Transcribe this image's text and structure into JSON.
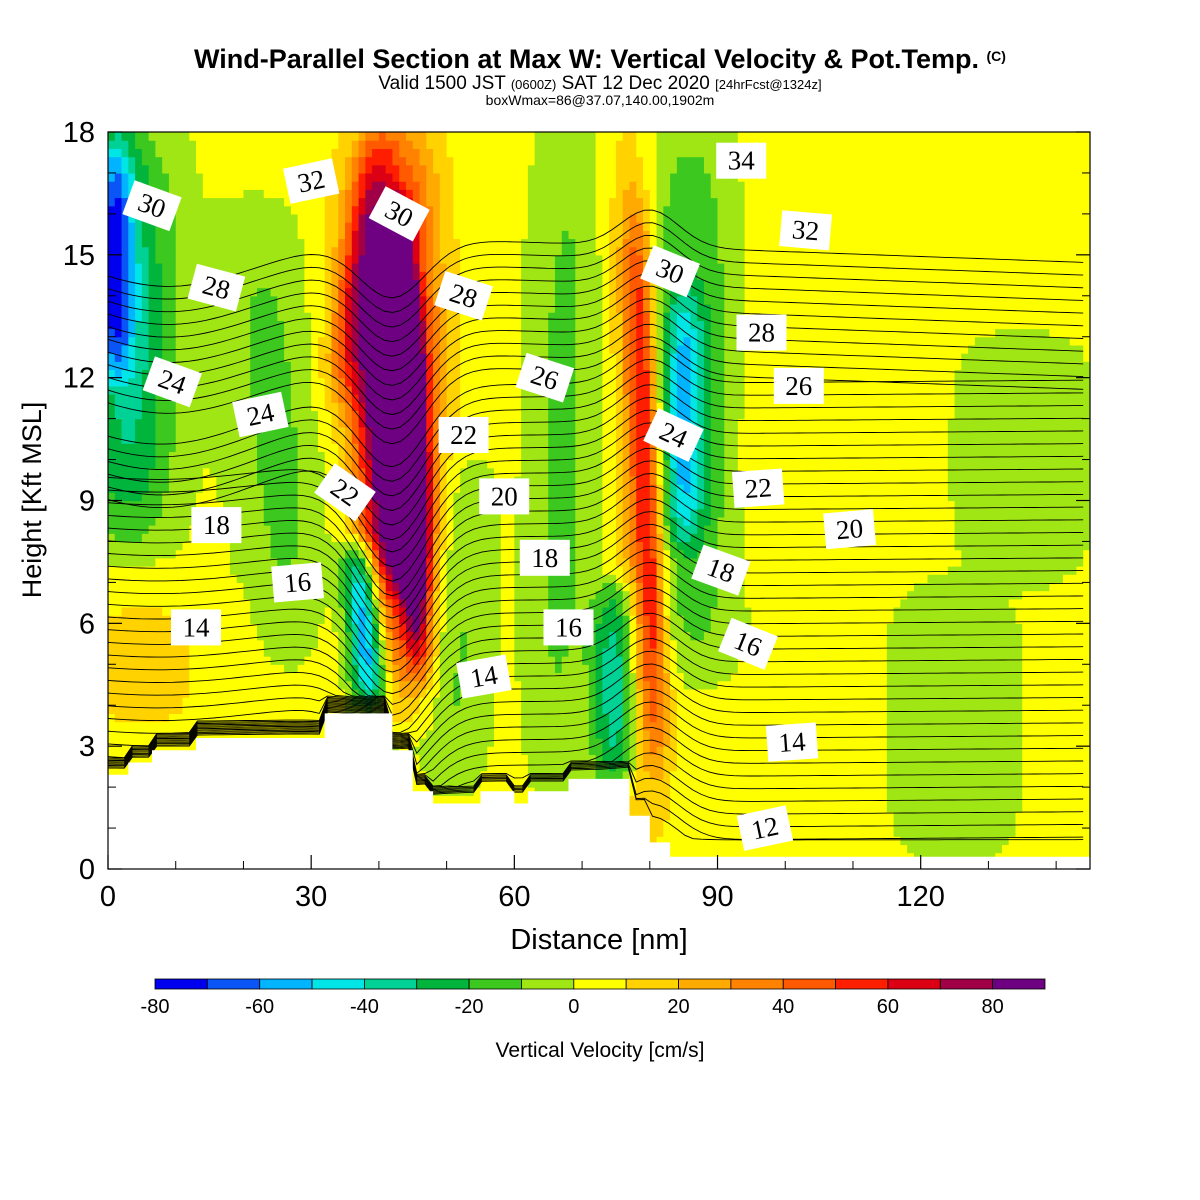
{
  "title": {
    "main": "Wind-Parallel Section at Max W: Vertical Velocity & Pot.Temp.",
    "mark": "(C)",
    "valid_prefix": "Valid 1500 JST",
    "valid_z": "(0600Z)",
    "valid_date": "SAT 12 Dec 2020",
    "valid_fcst": "[24hrFcst@1324z]",
    "box": "boxWmax=86@37.07,140.00,1902m"
  },
  "chart_data": {
    "type": "heatmap",
    "xlabel": "Distance [nm]",
    "ylabel": "Height [Kft MSL]",
    "xlim": [
      0,
      145
    ],
    "ylim": [
      0,
      18
    ],
    "x_ticks": [
      0,
      30,
      60,
      90,
      120
    ],
    "y_ticks": [
      0,
      3,
      6,
      9,
      12,
      15,
      18
    ],
    "colorbar": {
      "label": "Vertical Velocity [cm/s]",
      "levels": [
        -80,
        -70,
        -60,
        -50,
        -40,
        -30,
        -20,
        -10,
        0,
        10,
        20,
        30,
        40,
        50,
        60,
        70,
        80,
        90
      ],
      "tick_labels": [
        "-80",
        "-60",
        "-40",
        "-20",
        "0",
        "20",
        "40",
        "60",
        "80"
      ],
      "tick_values": [
        -80,
        -60,
        -40,
        -20,
        0,
        20,
        40,
        60,
        80
      ],
      "colors": [
        "#0000ee",
        "#0a55f5",
        "#00b4ff",
        "#00e6e6",
        "#00d296",
        "#00b43c",
        "#3cc81e",
        "#a0e614",
        "#ffff00",
        "#ffd200",
        "#ffaa00",
        "#ff8200",
        "#ff5a00",
        "#ff1e00",
        "#dc0014",
        "#a00046",
        "#6e0082"
      ]
    },
    "velocity_bands": [
      {
        "x_bottom": 40,
        "x_top": 42,
        "w": 10,
        "h_min": 4,
        "h_max": 18,
        "value": 80
      },
      {
        "x_bottom": 46,
        "x_top": 43,
        "w": 3,
        "h_min": 5,
        "h_max": 16,
        "value": 85
      },
      {
        "x_bottom": 44,
        "x_top": 42,
        "w": 6,
        "h_min": 7,
        "h_max": 14,
        "value": 60
      },
      {
        "x_bottom": 38,
        "x_top": 36,
        "w": 7,
        "h_min": 3,
        "h_max": 11,
        "value": -30
      },
      {
        "x_bottom": 39,
        "x_top": 37,
        "w": 4,
        "h_min": 4,
        "h_max": 8,
        "value": -75
      },
      {
        "x_bottom": 3,
        "x_top": 3,
        "w": 10,
        "h_min": 8,
        "h_max": 18,
        "value": -35
      },
      {
        "x_bottom": 1,
        "x_top": 1,
        "w": 4,
        "h_min": 12,
        "h_max": 18,
        "value": -50
      },
      {
        "x_bottom": 28,
        "x_top": 22,
        "w": 10,
        "h_min": 5,
        "h_max": 16,
        "value": -15
      },
      {
        "x_bottom": 51,
        "x_top": 52,
        "w": 7,
        "h_min": 2,
        "h_max": 10,
        "value": -15
      },
      {
        "x_bottom": 66,
        "x_top": 68,
        "w": 7,
        "h_min": 2,
        "h_max": 18,
        "value": -15
      },
      {
        "x_bottom": 75,
        "x_top": 75,
        "w": 5,
        "h_min": 2,
        "h_max": 7,
        "value": -40
      },
      {
        "x_bottom": 86,
        "x_top": 86,
        "w": 10,
        "h_min": 5,
        "h_max": 18,
        "value": -25
      },
      {
        "x_bottom": 85,
        "x_top": 85,
        "w": 4,
        "h_min": 8,
        "h_max": 14,
        "value": -35
      },
      {
        "x_bottom": 80,
        "x_top": 77,
        "w": 5,
        "h_min": 1,
        "h_max": 18,
        "value": 30
      },
      {
        "x_bottom": 81,
        "x_top": 78,
        "w": 3,
        "h_min": 3,
        "h_max": 16,
        "value": 40
      },
      {
        "x_bottom": 35,
        "x_top": 40,
        "w": 4,
        "h_min": 12,
        "h_max": 18,
        "value": 30
      },
      {
        "x_bottom": 100,
        "x_top": 105,
        "w": 20,
        "h_min": 7,
        "h_max": 18,
        "value": 8
      },
      {
        "x_bottom": 5,
        "x_top": 5,
        "w": 20,
        "h_min": 3,
        "h_max": 7,
        "value": 10
      },
      {
        "x_bottom": 125,
        "x_top": 125,
        "w": 14,
        "h_min": 0,
        "h_max": 7,
        "value": -10
      },
      {
        "x_bottom": 135,
        "x_top": 135,
        "w": 14,
        "h_min": 7,
        "h_max": 13,
        "value": -10
      }
    ],
    "terrain": [
      [
        0,
        2.3
      ],
      [
        3,
        2.3
      ],
      [
        3,
        2.6
      ],
      [
        6.5,
        2.6
      ],
      [
        6.5,
        2.9
      ],
      [
        13,
        2.9
      ],
      [
        13,
        3.2
      ],
      [
        32,
        3.2
      ],
      [
        32,
        3.8
      ],
      [
        42,
        3.8
      ],
      [
        42,
        2.9
      ],
      [
        45,
        2.9
      ],
      [
        45,
        1.9
      ],
      [
        48,
        1.9
      ],
      [
        48,
        1.6
      ],
      [
        55,
        1.6
      ],
      [
        55,
        1.9
      ],
      [
        60,
        1.9
      ],
      [
        60,
        1.6
      ],
      [
        62,
        1.6
      ],
      [
        62,
        1.9
      ],
      [
        68,
        1.9
      ],
      [
        68,
        2.2
      ],
      [
        77,
        2.2
      ],
      [
        77,
        1.3
      ],
      [
        80,
        1.3
      ],
      [
        80,
        0.65
      ],
      [
        83,
        0.65
      ],
      [
        83,
        0.3
      ],
      [
        145,
        0.3
      ]
    ],
    "isentropes": {
      "levels": [
        11,
        11.5,
        12,
        12.5,
        13,
        13.5,
        14,
        14.5,
        15,
        15.5,
        16,
        16.5,
        17,
        17.5,
        18,
        18.5,
        19,
        19.5,
        20,
        20.5,
        21,
        21.5,
        22,
        22.5,
        23,
        23.5,
        24,
        24.5,
        25,
        25.5,
        26,
        26.5,
        27,
        27.5,
        28,
        28.5,
        29,
        29.5,
        30,
        30.5,
        31,
        31.5,
        32,
        32.5,
        33,
        33.5,
        34,
        34.5,
        35
      ],
      "labels": [
        {
          "text": "30",
          "x": 6.5,
          "y": 16.2,
          "angle": 20
        },
        {
          "text": "32",
          "x": 30,
          "y": 16.8,
          "angle": -12
        },
        {
          "text": "30",
          "x": 43,
          "y": 16,
          "angle": 28
        },
        {
          "text": "34",
          "x": 93.5,
          "y": 17.3,
          "angle": 0
        },
        {
          "text": "32",
          "x": 103,
          "y": 15.6,
          "angle": 5
        },
        {
          "text": "28",
          "x": 16,
          "y": 14.2,
          "angle": 15
        },
        {
          "text": "28",
          "x": 52.5,
          "y": 14,
          "angle": 18
        },
        {
          "text": "30",
          "x": 83,
          "y": 14.6,
          "angle": 22
        },
        {
          "text": "28",
          "x": 96.5,
          "y": 13.1,
          "angle": 0
        },
        {
          "text": "24",
          "x": 9.5,
          "y": 11.9,
          "angle": 20
        },
        {
          "text": "24",
          "x": 22.5,
          "y": 11.1,
          "angle": -12
        },
        {
          "text": "26",
          "x": 64.5,
          "y": 12,
          "angle": 18
        },
        {
          "text": "26",
          "x": 102,
          "y": 11.8,
          "angle": 0
        },
        {
          "text": "22",
          "x": 52.5,
          "y": 10.6,
          "angle": 0
        },
        {
          "text": "24",
          "x": 83.5,
          "y": 10.6,
          "angle": 25
        },
        {
          "text": "22",
          "x": 35,
          "y": 9.2,
          "angle": 35
        },
        {
          "text": "20",
          "x": 58.5,
          "y": 9.1,
          "angle": 0
        },
        {
          "text": "22",
          "x": 96,
          "y": 9.3,
          "angle": -4
        },
        {
          "text": "20",
          "x": 109.5,
          "y": 8.3,
          "angle": -5
        },
        {
          "text": "18",
          "x": 16,
          "y": 8.4,
          "angle": 0
        },
        {
          "text": "18",
          "x": 64.5,
          "y": 7.6,
          "angle": 0
        },
        {
          "text": "18",
          "x": 90.5,
          "y": 7.3,
          "angle": 20
        },
        {
          "text": "16",
          "x": 28,
          "y": 7,
          "angle": -5
        },
        {
          "text": "16",
          "x": 68,
          "y": 5.9,
          "angle": 0
        },
        {
          "text": "16",
          "x": 94.5,
          "y": 5.5,
          "angle": 22
        },
        {
          "text": "14",
          "x": 13,
          "y": 5.9,
          "angle": 0
        },
        {
          "text": "14",
          "x": 55.5,
          "y": 4.7,
          "angle": -10
        },
        {
          "text": "14",
          "x": 101,
          "y": 3.1,
          "angle": -4
        },
        {
          "text": "12",
          "x": 97,
          "y": 1,
          "angle": -12
        }
      ]
    }
  }
}
